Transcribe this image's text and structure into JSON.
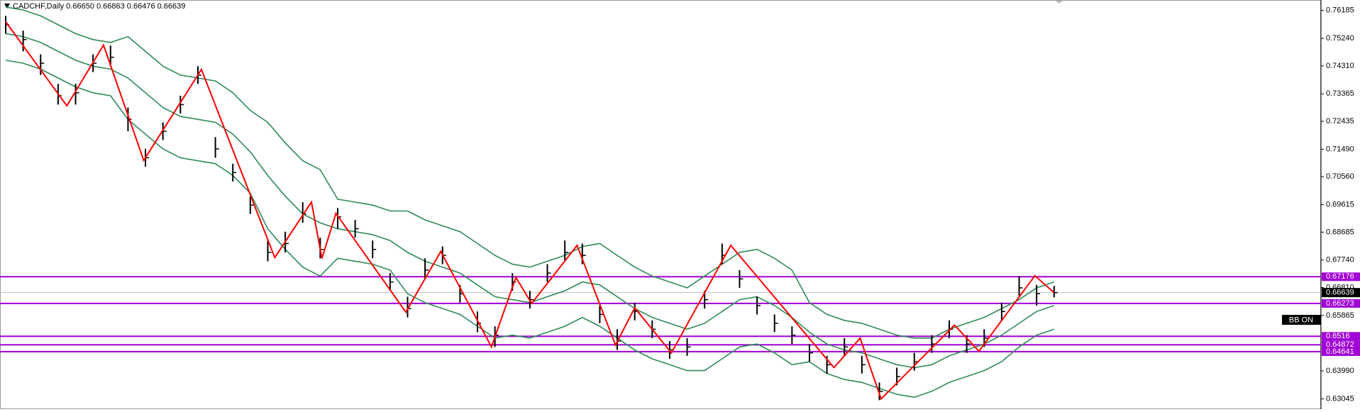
{
  "chart_data": {
    "type": "ohlc",
    "title": "CADCHF,Daily 0.66650 0.66863 0.66476 0.66639",
    "ylim": [
      0.6272,
      0.7649
    ],
    "yticks": [
      0.76185,
      {
        "value": 0.7524,
        "label": "0.75240"
      },
      {
        "value": 0.7431,
        "label": "0.74310"
      },
      0.73365,
      0.72435,
      {
        "value": 0.7149,
        "label": "0.71490"
      },
      {
        "value": 0.7056,
        "label": "0.70560"
      },
      0.69615,
      0.68685,
      {
        "value": 0.6774,
        "label": "0.67740"
      },
      {
        "value": 0.6681,
        "label": "0.66810"
      },
      0.65865,
      {
        "value": 0.6399,
        "label": "0.63990"
      },
      0.63045
    ],
    "bar_color": "#000000",
    "high": [
      0.76,
      0.755,
      0.747,
      0.737,
      0.737,
      0.747,
      0.75,
      0.729,
      0.715,
      0.724,
      0.733,
      0.743,
      0.719,
      0.71,
      0.699,
      0.684,
      0.687,
      0.697,
      0.685,
      0.695,
      0.691,
      0.684,
      0.673,
      0.665,
      0.678,
      0.682,
      0.669,
      0.66,
      0.655,
      0.673,
      0.667,
      0.676,
      0.684,
      0.683,
      0.662,
      0.654,
      0.663,
      0.657,
      0.65,
      0.651,
      0.667,
      0.683,
      0.674,
      0.665,
      0.659,
      0.655,
      0.649,
      0.645,
      0.651,
      0.645,
      0.636,
      0.641,
      0.646,
      0.652,
      0.657,
      0.652,
      0.654,
      0.663,
      0.672,
      0.669,
      0.66863
    ],
    "low": [
      0.754,
      0.748,
      0.74,
      0.73,
      0.73,
      0.741,
      0.743,
      0.721,
      0.709,
      0.718,
      0.727,
      0.737,
      0.712,
      0.704,
      0.693,
      0.677,
      0.68,
      0.69,
      0.678,
      0.688,
      0.685,
      0.678,
      0.667,
      0.658,
      0.671,
      0.676,
      0.663,
      0.653,
      0.648,
      0.667,
      0.661,
      0.67,
      0.677,
      0.676,
      0.656,
      0.647,
      0.657,
      0.651,
      0.644,
      0.645,
      0.661,
      0.676,
      0.668,
      0.659,
      0.653,
      0.649,
      0.643,
      0.639,
      0.645,
      0.639,
      0.63,
      0.635,
      0.64,
      0.646,
      0.651,
      0.646,
      0.648,
      0.657,
      0.665,
      0.662,
      0.66476
    ],
    "close": [
      0.757,
      0.752,
      0.744,
      0.733,
      0.734,
      0.744,
      0.746,
      0.725,
      0.712,
      0.721,
      0.73,
      0.74,
      0.715,
      0.707,
      0.696,
      0.68,
      0.683,
      0.693,
      0.681,
      0.692,
      0.688,
      0.681,
      0.67,
      0.661,
      0.674,
      0.679,
      0.666,
      0.656,
      0.652,
      0.67,
      0.664,
      0.673,
      0.68,
      0.679,
      0.659,
      0.65,
      0.66,
      0.654,
      0.647,
      0.648,
      0.664,
      0.679,
      0.671,
      0.662,
      0.656,
      0.652,
      0.646,
      0.642,
      0.648,
      0.642,
      0.633,
      0.638,
      0.643,
      0.649,
      0.654,
      0.649,
      0.651,
      0.66,
      0.668,
      0.666,
      0.66639
    ],
    "bands": [
      {
        "color": "#2e8b57",
        "values": [
          0.763,
          0.762,
          0.76,
          0.757,
          0.754,
          0.752,
          0.751,
          0.753,
          0.748,
          0.743,
          0.74,
          0.739,
          0.738,
          0.734,
          0.728,
          0.724,
          0.717,
          0.711,
          0.708,
          0.698,
          0.697,
          0.696,
          0.694,
          0.694,
          0.691,
          0.689,
          0.687,
          0.683,
          0.679,
          0.676,
          0.675,
          0.677,
          0.679,
          0.682,
          0.683,
          0.679,
          0.675,
          0.672,
          0.67,
          0.668,
          0.672,
          0.676,
          0.68,
          0.681,
          0.678,
          0.674,
          0.663,
          0.659,
          0.657,
          0.656,
          0.654,
          0.652,
          0.651,
          0.651,
          0.654,
          0.656,
          0.658,
          0.661,
          0.664,
          0.668,
          0.67
        ]
      },
      {
        "color": "#2e8b57",
        "values": [
          0.754,
          0.753,
          0.751,
          0.748,
          0.745,
          0.743,
          0.742,
          0.739,
          0.734,
          0.729,
          0.726,
          0.725,
          0.724,
          0.72,
          0.714,
          0.706,
          0.699,
          0.693,
          0.69,
          0.688,
          0.687,
          0.686,
          0.684,
          0.68,
          0.677,
          0.675,
          0.673,
          0.669,
          0.665,
          0.664,
          0.663,
          0.665,
          0.667,
          0.67,
          0.669,
          0.665,
          0.661,
          0.658,
          0.656,
          0.654,
          0.656,
          0.66,
          0.664,
          0.665,
          0.662,
          0.658,
          0.653,
          0.649,
          0.647,
          0.646,
          0.644,
          0.642,
          0.641,
          0.642,
          0.645,
          0.647,
          0.649,
          0.652,
          0.656,
          0.66,
          0.662
        ]
      },
      {
        "color": "#2e8b57",
        "values": [
          0.745,
          0.744,
          0.742,
          0.739,
          0.736,
          0.734,
          0.733,
          0.725,
          0.72,
          0.715,
          0.712,
          0.711,
          0.71,
          0.706,
          0.7,
          0.688,
          0.681,
          0.675,
          0.672,
          0.678,
          0.677,
          0.676,
          0.674,
          0.666,
          0.663,
          0.661,
          0.659,
          0.655,
          0.651,
          0.652,
          0.651,
          0.653,
          0.655,
          0.658,
          0.655,
          0.651,
          0.647,
          0.644,
          0.642,
          0.64,
          0.64,
          0.644,
          0.648,
          0.649,
          0.646,
          0.642,
          0.643,
          0.639,
          0.637,
          0.636,
          0.634,
          0.632,
          0.631,
          0.633,
          0.636,
          0.638,
          0.64,
          0.643,
          0.648,
          0.652,
          0.654
        ]
      }
    ],
    "zigzag": {
      "color": "#ff0000",
      "x": [
        0,
        3.5,
        5.6,
        7.9,
        11.2,
        15.4,
        17.5,
        18.1,
        18.9,
        22.9,
        24.9,
        27.8,
        29.2,
        30.1,
        32.7,
        34.9,
        36,
        38.1,
        41.5,
        47.4,
        48.9,
        50.1,
        54.3,
        55.7,
        58.9,
        60
      ],
      "values": [
        0.75804,
        0.72959,
        0.75012,
        0.71111,
        0.7419,
        0.67826,
        0.69703,
        0.67797,
        0.69322,
        0.65979,
        0.68032,
        0.64805,
        0.67152,
        0.66272,
        0.68237,
        0.64864,
        0.66125,
        0.646,
        0.68237,
        0.64101,
        0.65098,
        0.63045,
        0.65538,
        0.64658,
        0.6721,
        0.66639
      ]
    },
    "levels": {
      "color": "#a100d6",
      "values": [
        0.67176,
        0.66273,
        0.6516,
        0.64872,
        0.64641
      ]
    },
    "last_price": 0.66639,
    "indicator_label": "BB ON"
  }
}
